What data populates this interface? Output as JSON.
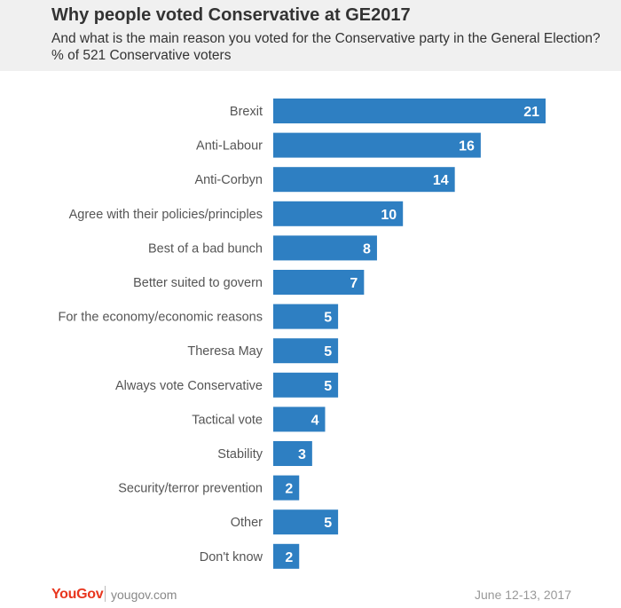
{
  "title": "Why people voted Conservative at GE2017",
  "subtitle": "And what is the main reason you voted for the Conservative party in the General Election? % of 521 Conservative voters",
  "footer": {
    "logo": "YouGov",
    "site": "yougov.com",
    "date": "June 12-13, 2017"
  },
  "colors": {
    "bar": "#2e7fc2",
    "label": "#555555",
    "value": "#ffffff"
  },
  "chart_data": {
    "type": "bar",
    "orientation": "horizontal",
    "categories": [
      "Brexit",
      "Anti-Labour",
      "Anti-Corbyn",
      "Agree with their policies/principles",
      "Best of a bad bunch",
      "Better suited to govern",
      "For the economy/economic reasons",
      "Theresa May",
      "Always vote Conservative",
      "Tactical vote",
      "Stability",
      "Security/terror prevention",
      "Other",
      "Don't know"
    ],
    "values": [
      21,
      16,
      14,
      10,
      8,
      7,
      5,
      5,
      5,
      4,
      3,
      2,
      5,
      2
    ],
    "xlim": [
      0,
      21
    ],
    "grid": false,
    "legend": "none"
  }
}
